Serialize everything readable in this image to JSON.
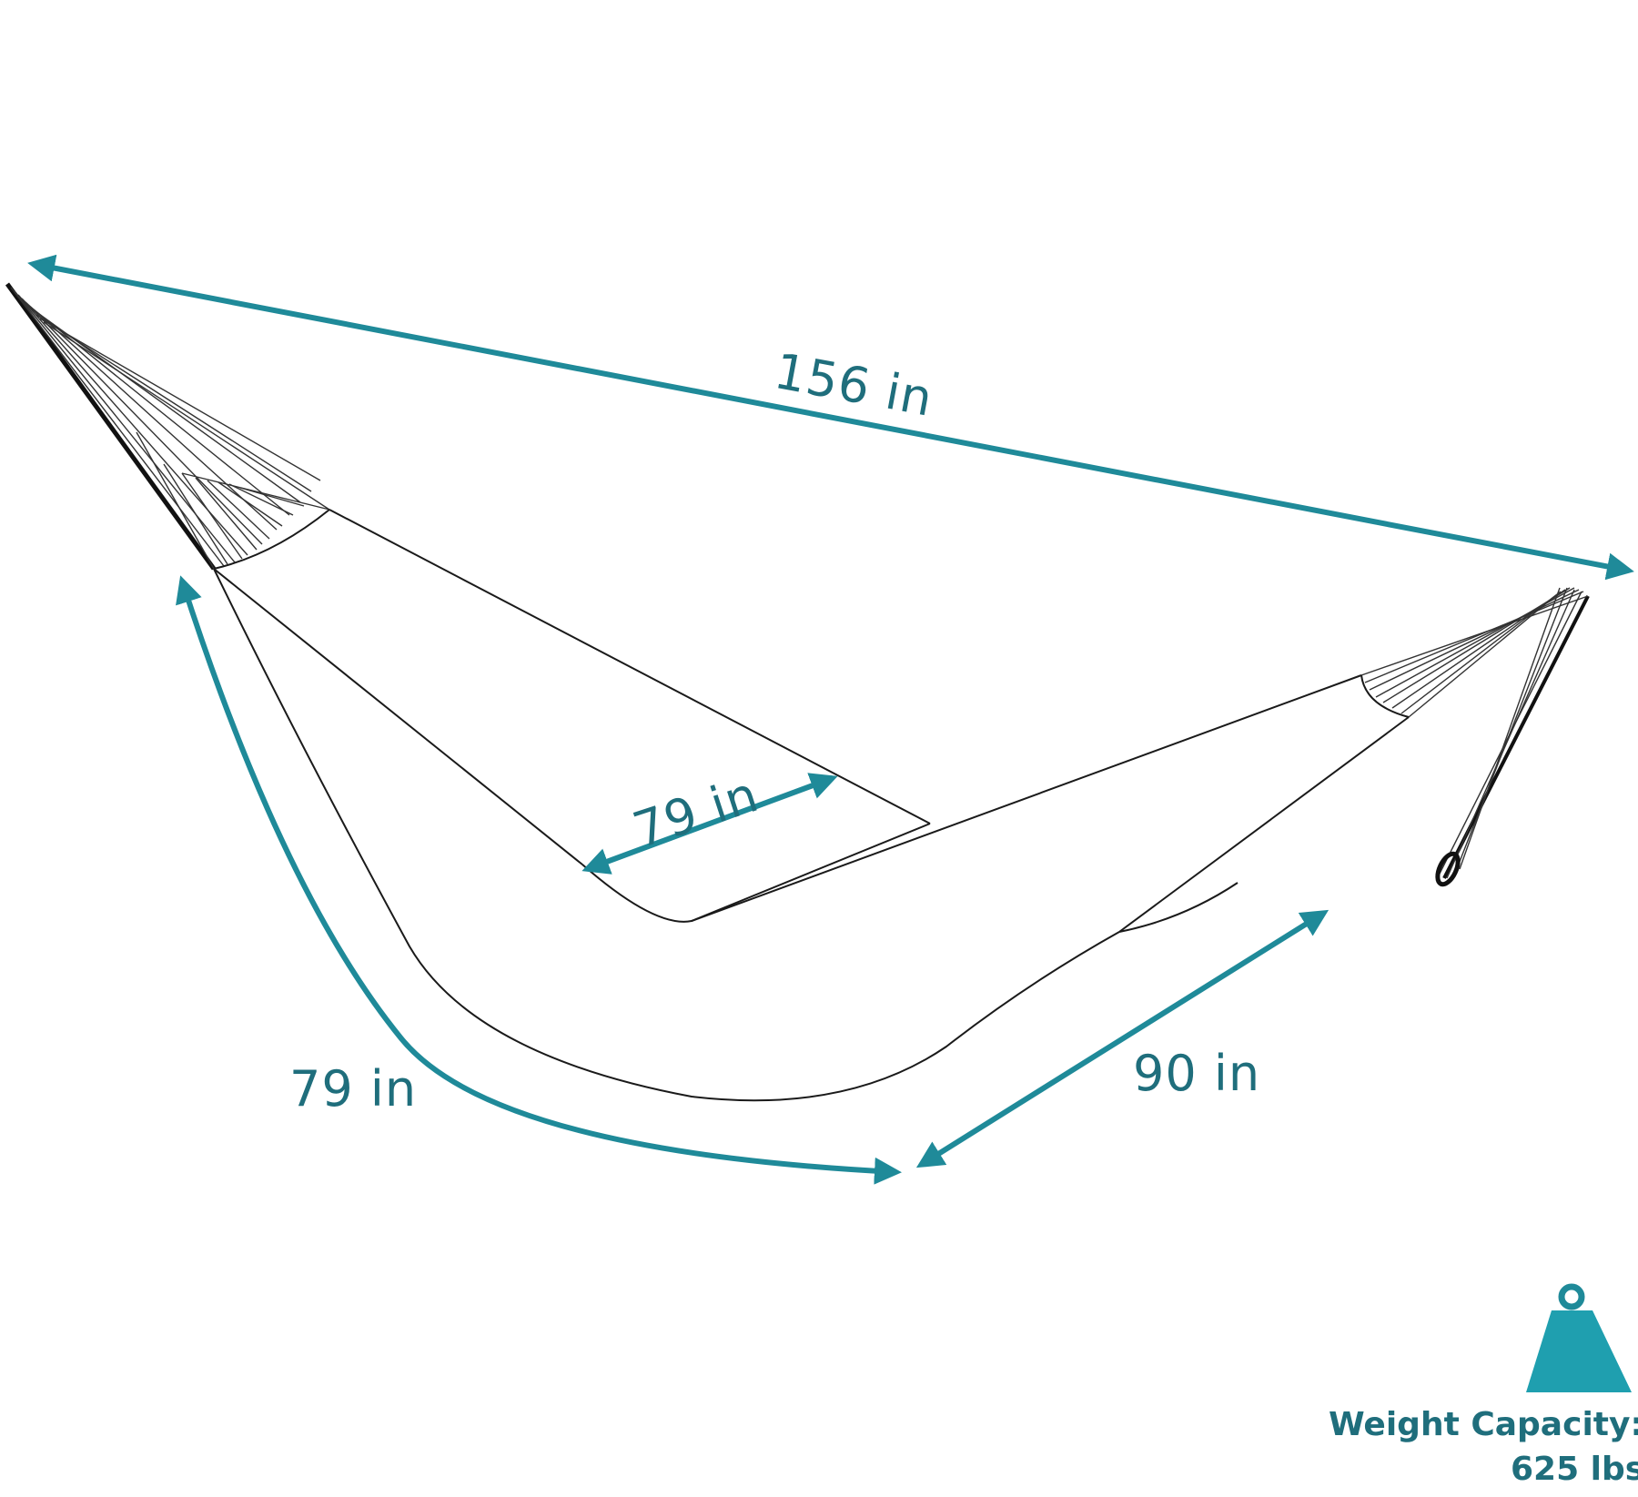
{
  "dimensions": {
    "overall_length": "156 in",
    "bed_width": "79 in",
    "side_length": "79 in",
    "bed_length": "90 in"
  },
  "weight": {
    "label": "Weight Capacity:",
    "value": "625 lbs",
    "icon": "weight-icon"
  },
  "colors": {
    "accent": "#1f8a99",
    "text": "#1f6e7c",
    "outline": "#1a1a1a"
  }
}
